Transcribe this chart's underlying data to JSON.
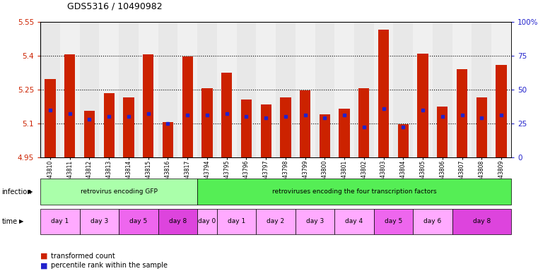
{
  "title": "GDS5316 / 10490982",
  "samples": [
    "GSM943810",
    "GSM943811",
    "GSM943812",
    "GSM943813",
    "GSM943814",
    "GSM943815",
    "GSM943816",
    "GSM943817",
    "GSM943794",
    "GSM943795",
    "GSM943796",
    "GSM943797",
    "GSM943798",
    "GSM943799",
    "GSM943800",
    "GSM943801",
    "GSM943802",
    "GSM943803",
    "GSM943804",
    "GSM943805",
    "GSM943806",
    "GSM943807",
    "GSM943808",
    "GSM943809"
  ],
  "bar_values": [
    5.295,
    5.405,
    5.155,
    5.235,
    5.215,
    5.405,
    5.105,
    5.395,
    5.255,
    5.325,
    5.205,
    5.185,
    5.215,
    5.245,
    5.14,
    5.165,
    5.255,
    5.515,
    5.095,
    5.41,
    5.175,
    5.34,
    5.215,
    5.36
  ],
  "percentile_values": [
    35,
    32,
    28,
    30,
    30,
    32,
    25,
    31,
    31,
    32,
    30,
    29,
    30,
    31,
    29,
    31,
    22,
    36,
    22,
    35,
    30,
    31,
    29,
    31
  ],
  "ymin": 4.95,
  "ymax": 5.55,
  "bar_color": "#cc2200",
  "blue_color": "#2222cc",
  "bg_even": "#e8e8e8",
  "bg_odd": "#f0f0f0",
  "infection_groups": [
    {
      "label": "retrovirus encoding GFP",
      "start": 0,
      "end": 8,
      "color": "#aaffaa"
    },
    {
      "label": "retroviruses encoding the four transcription factors",
      "start": 8,
      "end": 24,
      "color": "#55ee55"
    }
  ],
  "time_groups": [
    {
      "label": "day 1",
      "start": 0,
      "end": 2,
      "color": "#ffaaff"
    },
    {
      "label": "day 3",
      "start": 2,
      "end": 4,
      "color": "#ffaaff"
    },
    {
      "label": "day 5",
      "start": 4,
      "end": 6,
      "color": "#ee66ee"
    },
    {
      "label": "day 8",
      "start": 6,
      "end": 8,
      "color": "#dd44dd"
    },
    {
      "label": "day 0",
      "start": 8,
      "end": 9,
      "color": "#ffaaff"
    },
    {
      "label": "day 1",
      "start": 9,
      "end": 11,
      "color": "#ffaaff"
    },
    {
      "label": "day 2",
      "start": 11,
      "end": 13,
      "color": "#ffaaff"
    },
    {
      "label": "day 3",
      "start": 13,
      "end": 15,
      "color": "#ffaaff"
    },
    {
      "label": "day 4",
      "start": 15,
      "end": 17,
      "color": "#ffaaff"
    },
    {
      "label": "day 5",
      "start": 17,
      "end": 19,
      "color": "#ee66ee"
    },
    {
      "label": "day 6",
      "start": 19,
      "end": 21,
      "color": "#ffaaff"
    },
    {
      "label": "day 8",
      "start": 21,
      "end": 24,
      "color": "#dd44dd"
    }
  ],
  "dotted_lines": [
    5.1,
    5.25,
    5.4
  ],
  "yticks": [
    4.95,
    5.1,
    5.25,
    5.4,
    5.55
  ],
  "ytick_labels": [
    "4.95",
    "5.1",
    "5.25",
    "5.4",
    "5.55"
  ],
  "right_axis_ticks": [
    0,
    25,
    50,
    75,
    100
  ],
  "right_axis_labels": [
    "0",
    "25",
    "50",
    "75",
    "100%"
  ]
}
